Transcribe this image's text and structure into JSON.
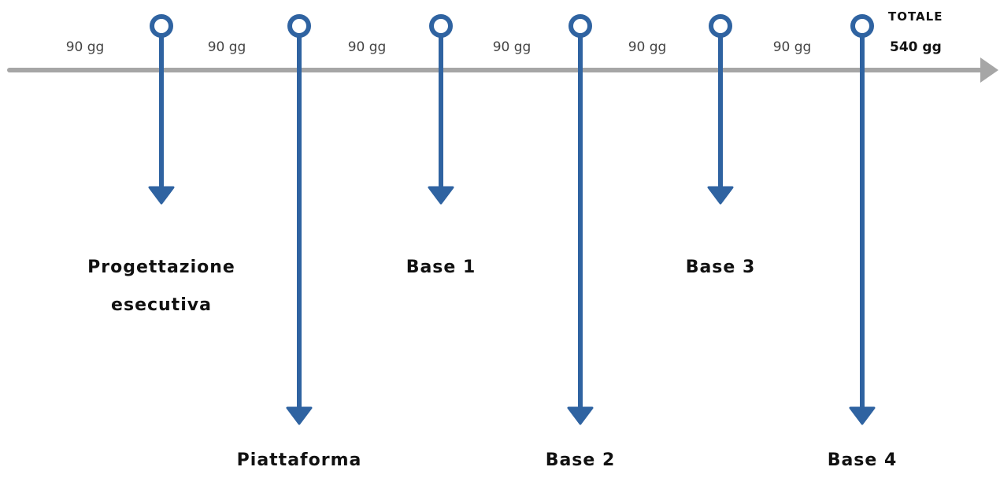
{
  "colors": {
    "axis": "#a6a6a6",
    "milestone": "#2f63a1",
    "text": "#111111",
    "segment_text": "#444444"
  },
  "segments": [
    {
      "label": "90 gg"
    },
    {
      "label": "90 gg"
    },
    {
      "label": "90 gg"
    },
    {
      "label": "90 gg"
    },
    {
      "label": "90 gg"
    },
    {
      "label": "90 gg"
    }
  ],
  "milestones": [
    {
      "label_lines": [
        "Progettazione",
        "esecutiva"
      ],
      "placement": "short"
    },
    {
      "label_lines": [
        "Piattaforma"
      ],
      "placement": "long"
    },
    {
      "label_lines": [
        "Base 1"
      ],
      "placement": "short"
    },
    {
      "label_lines": [
        "Base 2"
      ],
      "placement": "long"
    },
    {
      "label_lines": [
        "Base 3"
      ],
      "placement": "short"
    },
    {
      "label_lines": [
        "Base 4"
      ],
      "placement": "long"
    }
  ],
  "total": {
    "title": "TOTALE",
    "value": "540 gg"
  }
}
